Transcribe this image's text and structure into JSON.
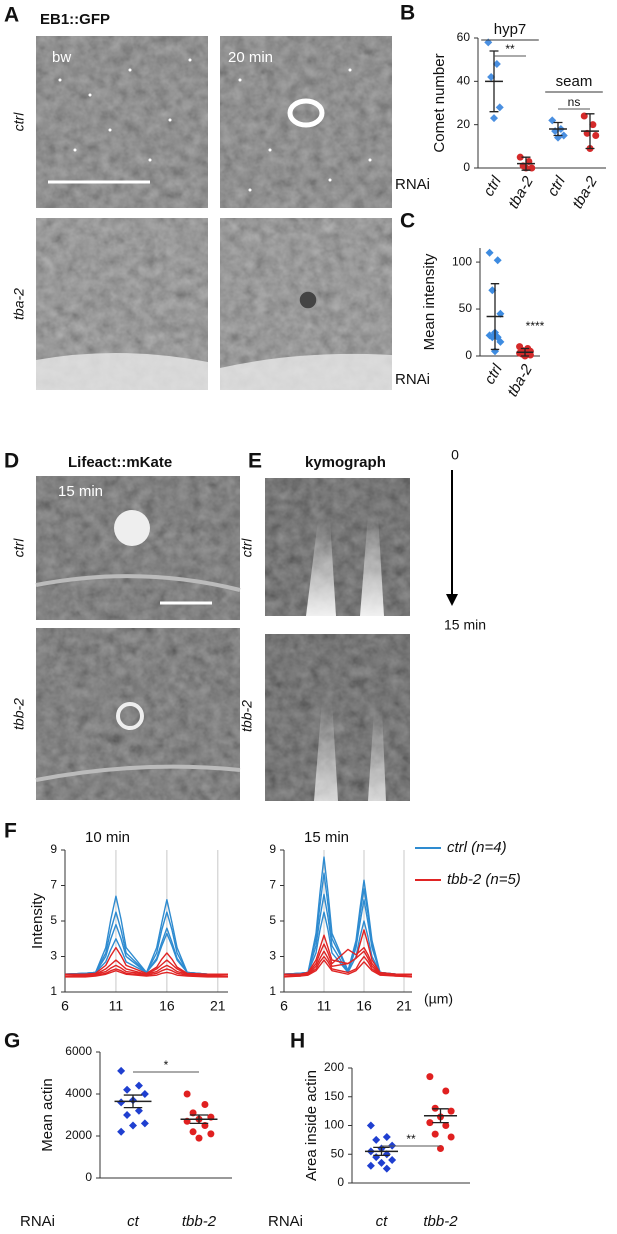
{
  "figure": {
    "panels": [
      "A",
      "B",
      "C",
      "D",
      "E",
      "F",
      "G",
      "H"
    ],
    "A": {
      "title": "EB1::GFP",
      "conditions": [
        "ctrl",
        "tba-2"
      ],
      "times": [
        "bw",
        "20 min"
      ]
    },
    "D": {
      "title": "Lifeact::mKate",
      "conditions": [
        "ctrl",
        "tbb-2"
      ],
      "time": "15 min"
    },
    "E": {
      "title": "kymograph",
      "conditions": [
        "ctrl",
        "tbb-2"
      ],
      "time_start": "0",
      "time_end": "15 min"
    },
    "F": {
      "unit": "(µm)"
    }
  },
  "chart_data": [
    {
      "type": "dot",
      "ylabel": "Comet number",
      "xlabel": "RNAi",
      "groups": [
        "hyp7",
        "seam"
      ],
      "categories": [
        "ctrl",
        "tba-2",
        "ctrl",
        "tba-2"
      ],
      "colors": [
        "#4a8fe0",
        "#d42a2a",
        "#4a8fe0",
        "#d42a2a"
      ],
      "markers": [
        "diamond",
        "circle",
        "diamond",
        "circle"
      ],
      "points": [
        [
          58,
          48,
          42,
          28,
          23
        ],
        [
          5,
          3,
          1,
          0,
          0
        ],
        [
          22,
          18,
          17,
          15,
          14
        ],
        [
          24,
          20,
          16,
          15,
          9
        ]
      ],
      "means": [
        40,
        2,
        18,
        17
      ],
      "errors": [
        14,
        3,
        3,
        8
      ],
      "annotations": [
        "**",
        "ns"
      ],
      "ylim": [
        0,
        60
      ],
      "yticks": [
        0,
        20,
        40,
        60
      ]
    },
    {
      "type": "dot",
      "ylabel": "Mean intensity",
      "xlabel": "RNAi",
      "categories": [
        "ctrl",
        "tba-2"
      ],
      "colors": [
        "#3d8be0",
        "#d42a2a"
      ],
      "markers": [
        "diamond",
        "circle"
      ],
      "points": [
        [
          110,
          102,
          70,
          45,
          25,
          22,
          20,
          20,
          15,
          5
        ],
        [
          10,
          8,
          6,
          5,
          4,
          3,
          2,
          2,
          1,
          0
        ]
      ],
      "means": [
        42,
        4
      ],
      "errors": [
        35,
        4
      ],
      "annotations": [
        "****"
      ],
      "ylim": [
        0,
        115
      ],
      "yticks": [
        0,
        50,
        100
      ]
    },
    {
      "type": "line",
      "title": "10 min",
      "ylabel": "Intensity",
      "x": [
        6,
        8,
        9,
        10,
        10.5,
        11,
        11.5,
        12,
        14,
        15,
        15.5,
        16,
        16.5,
        17,
        18,
        20,
        22
      ],
      "series": [
        {
          "color": "#2e8bd0",
          "values": [
            [
              2,
              2.05,
              2.1,
              3.5,
              5.1,
              6.4,
              5.1,
              3.5,
              2.1,
              3.5,
              4.9,
              6.2,
              4.9,
              3.5,
              2.1,
              2,
              2
            ],
            [
              2,
              2.05,
              2.1,
              3.2,
              4.5,
              5.5,
              4.5,
              3.2,
              2.1,
              3.2,
              4.5,
              5.5,
              4.5,
              3.2,
              2.1,
              2,
              2
            ],
            [
              2,
              2.05,
              2.1,
              3,
              4,
              4.8,
              4,
              3,
              2.1,
              2.9,
              3.8,
              4.6,
              3.8,
              2.9,
              2.1,
              2,
              2
            ],
            [
              2,
              2.05,
              2.1,
              2.7,
              3.4,
              4,
              3.4,
              2.7,
              2.1,
              2.8,
              3.6,
              4.3,
              3.6,
              2.8,
              2.1,
              2,
              2
            ]
          ]
        },
        {
          "color": "#e02424",
          "values": [
            [
              2,
              2,
              2.05,
              2.5,
              3.05,
              3.5,
              3.05,
              2.5,
              2.05,
              2.4,
              2.85,
              3.2,
              2.85,
              2.4,
              2.05,
              2,
              2
            ],
            [
              2,
              2,
              2,
              2.3,
              2.55,
              2.8,
              2.55,
              2.3,
              2,
              2.3,
              2.55,
              2.8,
              2.55,
              2.3,
              2,
              2,
              2
            ],
            [
              1.9,
              1.95,
              2,
              2.15,
              2.35,
              2.5,
              2.35,
              2.15,
              2,
              2.15,
              2.35,
              2.5,
              2.35,
              2.15,
              2,
              1.95,
              1.9
            ],
            [
              1.9,
              1.9,
              1.95,
              2.05,
              2.2,
              2.3,
              2.2,
              2.05,
              1.95,
              2.05,
              2.2,
              2.3,
              2.2,
              2.05,
              1.95,
              1.9,
              1.9
            ],
            [
              1.85,
              1.85,
              1.9,
              2,
              2.1,
              2.2,
              2.1,
              2,
              1.9,
              1.95,
              2.05,
              2.1,
              2.05,
              1.95,
              1.9,
              1.85,
              1.85
            ]
          ]
        }
      ],
      "xlim": [
        6,
        22
      ],
      "xticks": [
        6,
        11,
        16,
        21
      ],
      "ylim": [
        1,
        9
      ],
      "yticks": [
        1,
        3,
        5,
        7,
        9
      ],
      "xgrid": true
    },
    {
      "type": "line",
      "title": "15 min",
      "x": [
        6,
        8,
        9,
        10,
        10.5,
        11,
        11.5,
        12,
        14,
        15,
        15.5,
        16,
        16.5,
        17,
        18,
        20,
        22
      ],
      "series": [
        {
          "name": "ctrl (n=4)",
          "color": "#2e8bd0",
          "values": [
            [
              2,
              2.05,
              2.1,
              4.3,
              6.6,
              8.6,
              6.6,
              4.3,
              2.2,
              3.9,
              5.7,
              7.3,
              5.7,
              3.9,
              2.1,
              2,
              2
            ],
            [
              2,
              2.05,
              2.1,
              4,
              5.9,
              7.7,
              5.9,
              4,
              2.2,
              3.7,
              5.4,
              6.8,
              5.4,
              3.7,
              2.1,
              2,
              2
            ],
            [
              2,
              2.05,
              2.1,
              3.6,
              5.2,
              6.5,
              5.2,
              3.6,
              2.1,
              3.5,
              4.9,
              6.2,
              4.9,
              3.5,
              2.1,
              2,
              2
            ],
            [
              2,
              2.05,
              2.1,
              3.2,
              4.5,
              5.5,
              4.5,
              3.2,
              2.1,
              3,
              4.1,
              5,
              4.1,
              3,
              2.1,
              2,
              2
            ]
          ]
        },
        {
          "name": "tbb-2 (n=5)",
          "color": "#e02424",
          "values": [
            [
              2,
              2,
              2.1,
              2.8,
              3.5,
              4.2,
              3.5,
              2.8,
              2.6,
              2.9,
              3.7,
              4.5,
              3.7,
              2.8,
              2.1,
              2,
              2
            ],
            [
              2,
              2,
              2.05,
              2.6,
              3.2,
              3.7,
              3.2,
              2.6,
              3.4,
              3.1,
              3.3,
              3.5,
              3.1,
              2.6,
              2.05,
              2,
              2
            ],
            [
              1.9,
              1.95,
              2,
              2.45,
              2.9,
              3.3,
              2.9,
              2.45,
              2.6,
              2.9,
              3.1,
              3.3,
              2.9,
              2.45,
              2,
              1.95,
              1.9
            ],
            [
              1.9,
              1.9,
              2,
              2.3,
              2.7,
              3,
              2.7,
              2.3,
              2.1,
              2.3,
              2.7,
              3,
              2.7,
              2.3,
              2,
              1.9,
              1.9
            ],
            [
              1.85,
              1.9,
              1.95,
              2.2,
              2.5,
              2.8,
              2.5,
              2.2,
              2,
              2.2,
              2.45,
              2.7,
              2.45,
              2.2,
              1.95,
              1.9,
              1.85
            ]
          ]
        }
      ],
      "xlim": [
        6,
        22
      ],
      "xticks": [
        6,
        11,
        16,
        21
      ],
      "ylim": [
        1,
        9
      ],
      "yticks": [
        1,
        3,
        5,
        7,
        9
      ],
      "xgrid": true
    },
    {
      "type": "dot",
      "ylabel": "Mean actin",
      "xlabel": "RNAi",
      "categories": [
        "ct",
        "tbb-2"
      ],
      "colors": [
        "#1f3fd0",
        "#e02020"
      ],
      "markers": [
        "diamond",
        "circle"
      ],
      "points": [
        [
          5100,
          4400,
          4200,
          4000,
          3700,
          3600,
          3200,
          3000,
          2600,
          2500,
          2200
        ],
        [
          4000,
          3500,
          3100,
          2900,
          2800,
          2700,
          2500,
          2200,
          2100,
          1900
        ]
      ],
      "means": [
        3650,
        2800
      ],
      "errors": [
        300,
        200
      ],
      "annotations": [
        "*"
      ],
      "ylim": [
        0,
        6000
      ],
      "yticks": [
        0,
        2000,
        4000,
        6000
      ]
    },
    {
      "type": "dot",
      "ylabel": "Area inside actin",
      "xlabel": "RNAi",
      "categories": [
        "ct",
        "tbb-2"
      ],
      "colors": [
        "#1f3fd0",
        "#e02020"
      ],
      "markers": [
        "diamond",
        "circle"
      ],
      "points": [
        [
          100,
          80,
          75,
          65,
          60,
          55,
          50,
          45,
          40,
          35,
          30,
          25
        ],
        [
          185,
          160,
          130,
          125,
          115,
          105,
          100,
          85,
          80,
          60
        ]
      ],
      "means": [
        55,
        117
      ],
      "errors": [
        7,
        12
      ],
      "annotations": [
        "**"
      ],
      "ylim": [
        0,
        200
      ],
      "yticks": [
        0,
        50,
        100,
        150,
        200
      ]
    }
  ]
}
